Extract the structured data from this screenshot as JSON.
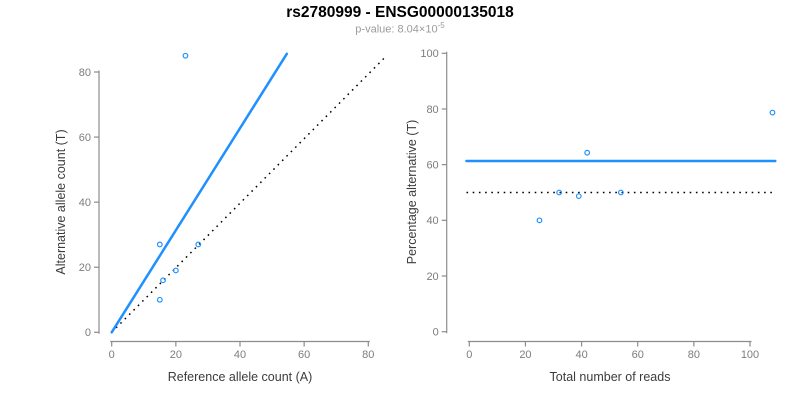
{
  "header": {
    "title": "rs2780999 - ENSG00000135018",
    "subtitle_prefix": "p-value: 8.04×10",
    "subtitle_exponent": "-5"
  },
  "palette": {
    "accent_blue": "#1E90FF",
    "line_black": "#000000",
    "axis_gray": "#8C8C8C",
    "tick_label_gray": "#7D7D7D",
    "axis_title_color": "#3C3C3C",
    "subtitle_gray": "#9B9B9B"
  },
  "chart_data": [
    {
      "type": "scatter",
      "name": "allele-counts-scatter",
      "xlabel": "Reference allele count (A)",
      "ylabel": "Alternative allele count (T)",
      "xticks": [
        0,
        20,
        40,
        60,
        80
      ],
      "yticks": [
        0,
        20,
        40,
        60,
        80
      ],
      "xlim": [
        0,
        86
      ],
      "ylim": [
        0,
        86
      ],
      "grid": false,
      "point_color": "#1E90FF",
      "points": [
        {
          "x": 15,
          "y": 27
        },
        {
          "x": 15,
          "y": 10
        },
        {
          "x": 23,
          "y": 85
        },
        {
          "x": 16,
          "y": 16
        },
        {
          "x": 20,
          "y": 19
        },
        {
          "x": 27,
          "y": 27
        }
      ],
      "lines": [
        {
          "name": "identity-line",
          "style": "dotted",
          "color": "#000000",
          "x1": 0,
          "y1": 0,
          "x2": 85.7,
          "y2": 85.0
        },
        {
          "name": "fitted-ratio-line",
          "style": "solid",
          "color": "#1E90FF",
          "x1": 0,
          "y1": 0,
          "x2": 54.6,
          "y2": 85.6
        }
      ]
    },
    {
      "type": "scatter",
      "name": "percentage-vs-reads-scatter",
      "xlabel": "Total number of reads",
      "ylabel": "Percentage alternative (T)",
      "xticks": [
        0,
        20,
        40,
        60,
        80,
        100
      ],
      "yticks": [
        0,
        20,
        40,
        60,
        80,
        100
      ],
      "xlim": [
        0,
        109
      ],
      "ylim": [
        0,
        100
      ],
      "grid": false,
      "point_color": "#1E90FF",
      "points": [
        {
          "x": 42,
          "y": 64.3
        },
        {
          "x": 25,
          "y": 40
        },
        {
          "x": 108,
          "y": 78.7
        },
        {
          "x": 32,
          "y": 50
        },
        {
          "x": 39,
          "y": 48.7
        },
        {
          "x": 54,
          "y": 50
        }
      ],
      "lines": [
        {
          "name": "null-50pct-line",
          "style": "dotted",
          "color": "#000000",
          "x1": -1,
          "y1": 50,
          "x2": 109,
          "y2": 50
        },
        {
          "name": "estimated-pct-line",
          "style": "solid",
          "color": "#1E90FF",
          "x1": -1,
          "y1": 61.3,
          "x2": 109,
          "y2": 61.3
        }
      ]
    }
  ]
}
